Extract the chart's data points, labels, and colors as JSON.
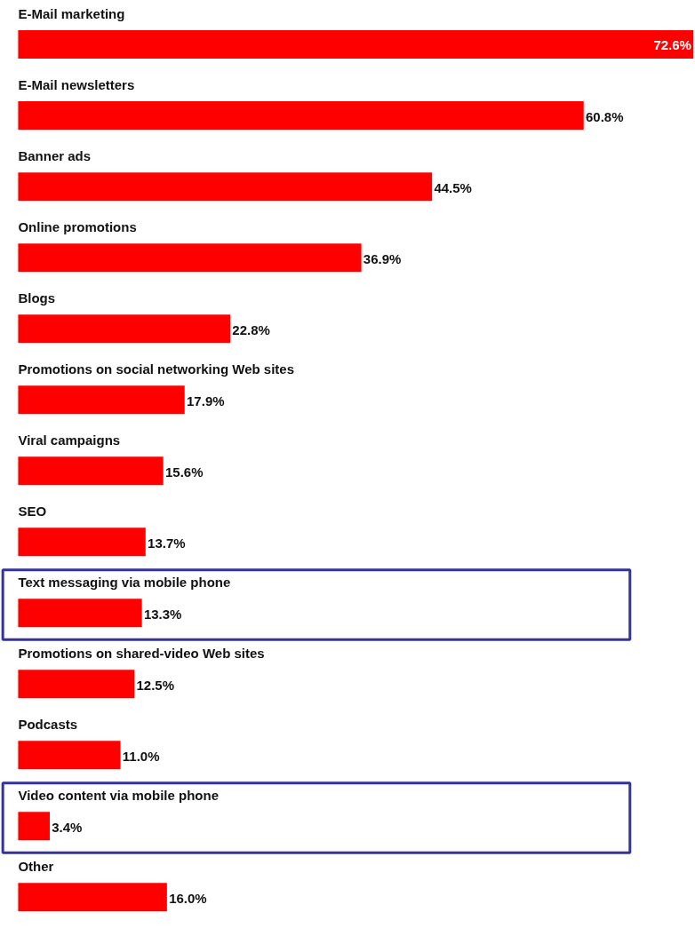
{
  "chart_data": {
    "type": "bar",
    "orientation": "horizontal",
    "categories": [
      "E-Mail marketing",
      "E-Mail newsletters",
      "Banner ads",
      "Online promotions",
      "Blogs",
      "Promotions on social networking Web sites",
      "Viral campaigns",
      "SEO",
      "Text messaging via mobile phone",
      "Promotions on shared-video Web sites",
      "Podcasts",
      "Video content via mobile phone",
      "Other"
    ],
    "values": [
      72.6,
      60.8,
      44.5,
      36.9,
      22.8,
      17.9,
      15.6,
      13.7,
      13.3,
      12.5,
      11.0,
      3.4,
      16.0
    ],
    "value_labels": [
      "72.6%",
      "60.8%",
      "44.5%",
      "36.9%",
      "22.8%",
      "17.9%",
      "15.6%",
      "13.7%",
      "13.3%",
      "12.5%",
      "11.0%",
      "3.4%",
      "16.0%"
    ],
    "color": "#ff0000"
  }
}
